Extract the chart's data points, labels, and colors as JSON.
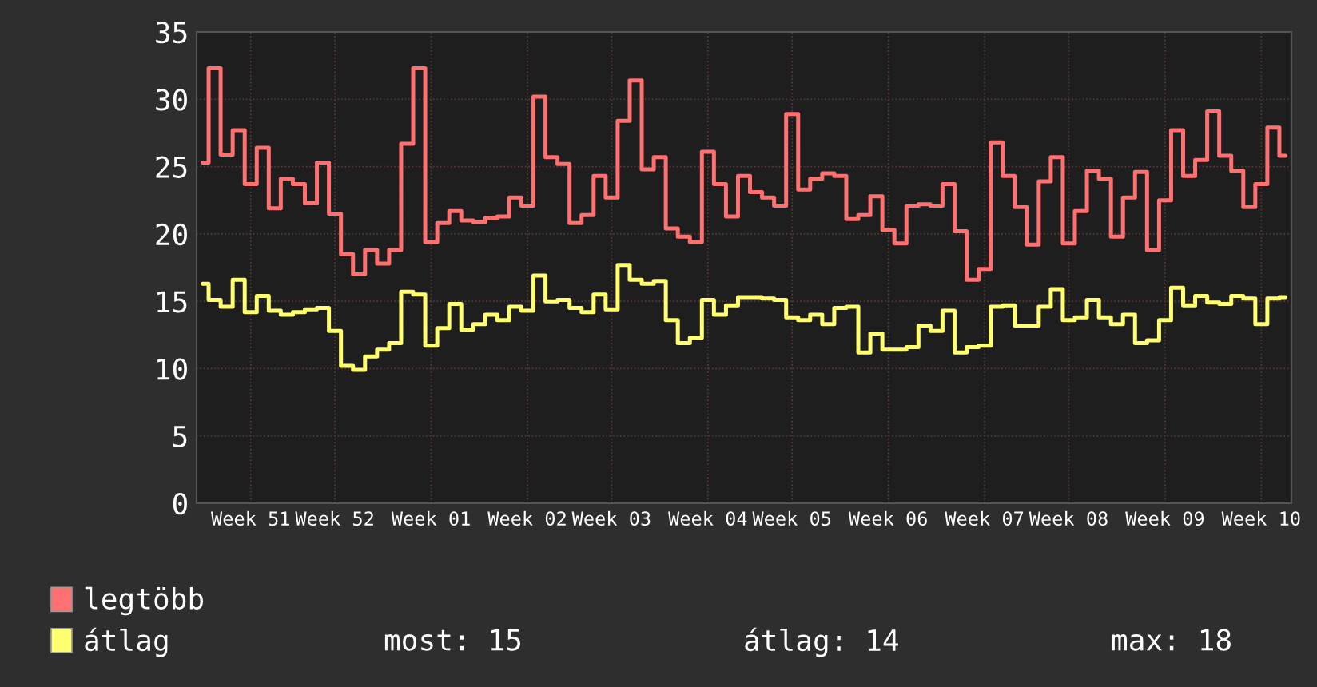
{
  "chart_data": {
    "type": "step",
    "ylim": [
      0,
      35
    ],
    "yticks": [
      0,
      5,
      10,
      15,
      20,
      25,
      30,
      35
    ],
    "categories": [
      null,
      null,
      null,
      null,
      "Week 51",
      null,
      null,
      null,
      null,
      null,
      null,
      "Week 52",
      null,
      null,
      null,
      null,
      null,
      null,
      null,
      "Week 01",
      null,
      null,
      null,
      null,
      null,
      null,
      null,
      "Week 02",
      null,
      null,
      null,
      null,
      null,
      null,
      "Week 03",
      null,
      null,
      null,
      null,
      null,
      null,
      null,
      "Week 04",
      null,
      null,
      null,
      null,
      null,
      null,
      "Week 05",
      null,
      null,
      null,
      null,
      null,
      null,
      null,
      "Week 06",
      null,
      null,
      null,
      null,
      null,
      null,
      null,
      "Week 07",
      null,
      null,
      null,
      null,
      null,
      null,
      "Week 08",
      null,
      null,
      null,
      null,
      null,
      null,
      null,
      "Week 09",
      null,
      null,
      null,
      null,
      null,
      null,
      null,
      "Week 10",
      null,
      null
    ],
    "series": [
      {
        "name": "legtöbb",
        "color": "#ff7070",
        "values": [
          25.3,
          32.3,
          25.9,
          27.7,
          23.7,
          26.4,
          21.9,
          24.1,
          23.7,
          22.3,
          25.3,
          21.5,
          18.5,
          17.0,
          18.8,
          17.8,
          18.8,
          26.7,
          32.3,
          19.4,
          20.8,
          21.7,
          21.0,
          20.9,
          21.2,
          21.3,
          22.7,
          22.1,
          30.2,
          25.7,
          25.2,
          20.8,
          21.4,
          24.3,
          22.7,
          28.4,
          31.4,
          24.8,
          25.7,
          20.4,
          19.8,
          19.4,
          26.1,
          23.7,
          21.3,
          24.3,
          23.1,
          22.7,
          22.1,
          28.9,
          23.3,
          24.1,
          24.5,
          24.3,
          21.1,
          21.4,
          22.8,
          20.3,
          19.3,
          22.1,
          22.2,
          22.1,
          23.7,
          20.2,
          16.6,
          17.4,
          26.8,
          24.3,
          22.0,
          19.2,
          23.9,
          25.7,
          19.3,
          21.7,
          24.7,
          24.1,
          19.8,
          22.7,
          24.6,
          18.8,
          22.5,
          27.7,
          24.3,
          25.5,
          29.1,
          25.8,
          24.7,
          22.0,
          23.7,
          27.9,
          25.8
        ]
      },
      {
        "name": "átlag",
        "color": "#ffff70",
        "values": [
          16.3,
          15.1,
          14.6,
          16.6,
          14.2,
          15.4,
          14.3,
          14.0,
          14.2,
          14.4,
          14.5,
          12.8,
          10.2,
          9.9,
          10.9,
          11.4,
          11.9,
          15.7,
          15.5,
          11.7,
          13.0,
          14.8,
          12.9,
          13.3,
          14.0,
          13.6,
          14.6,
          14.3,
          16.9,
          15.0,
          15.1,
          14.5,
          14.2,
          15.5,
          14.4,
          17.7,
          16.6,
          16.3,
          16.5,
          13.6,
          11.9,
          12.3,
          15.1,
          14.0,
          14.7,
          15.3,
          15.3,
          15.2,
          15.1,
          13.8,
          13.6,
          14.0,
          13.3,
          14.5,
          14.6,
          11.2,
          12.6,
          11.4,
          11.4,
          11.6,
          13.2,
          12.8,
          14.3,
          11.2,
          11.6,
          11.7,
          14.6,
          14.7,
          13.2,
          13.2,
          14.6,
          15.9,
          13.6,
          13.8,
          15.1,
          13.8,
          13.3,
          14.0,
          11.9,
          12.1,
          13.6,
          16.0,
          14.7,
          15.4,
          14.9,
          14.8,
          15.4,
          15.2,
          13.3,
          15.2,
          15.3
        ]
      }
    ],
    "annotations": [
      "most: 15",
      "átlag: 14",
      "max: 18"
    ],
    "grid": true,
    "legend": "bottom left",
    "line_style": "solid",
    "marker": "none"
  }
}
